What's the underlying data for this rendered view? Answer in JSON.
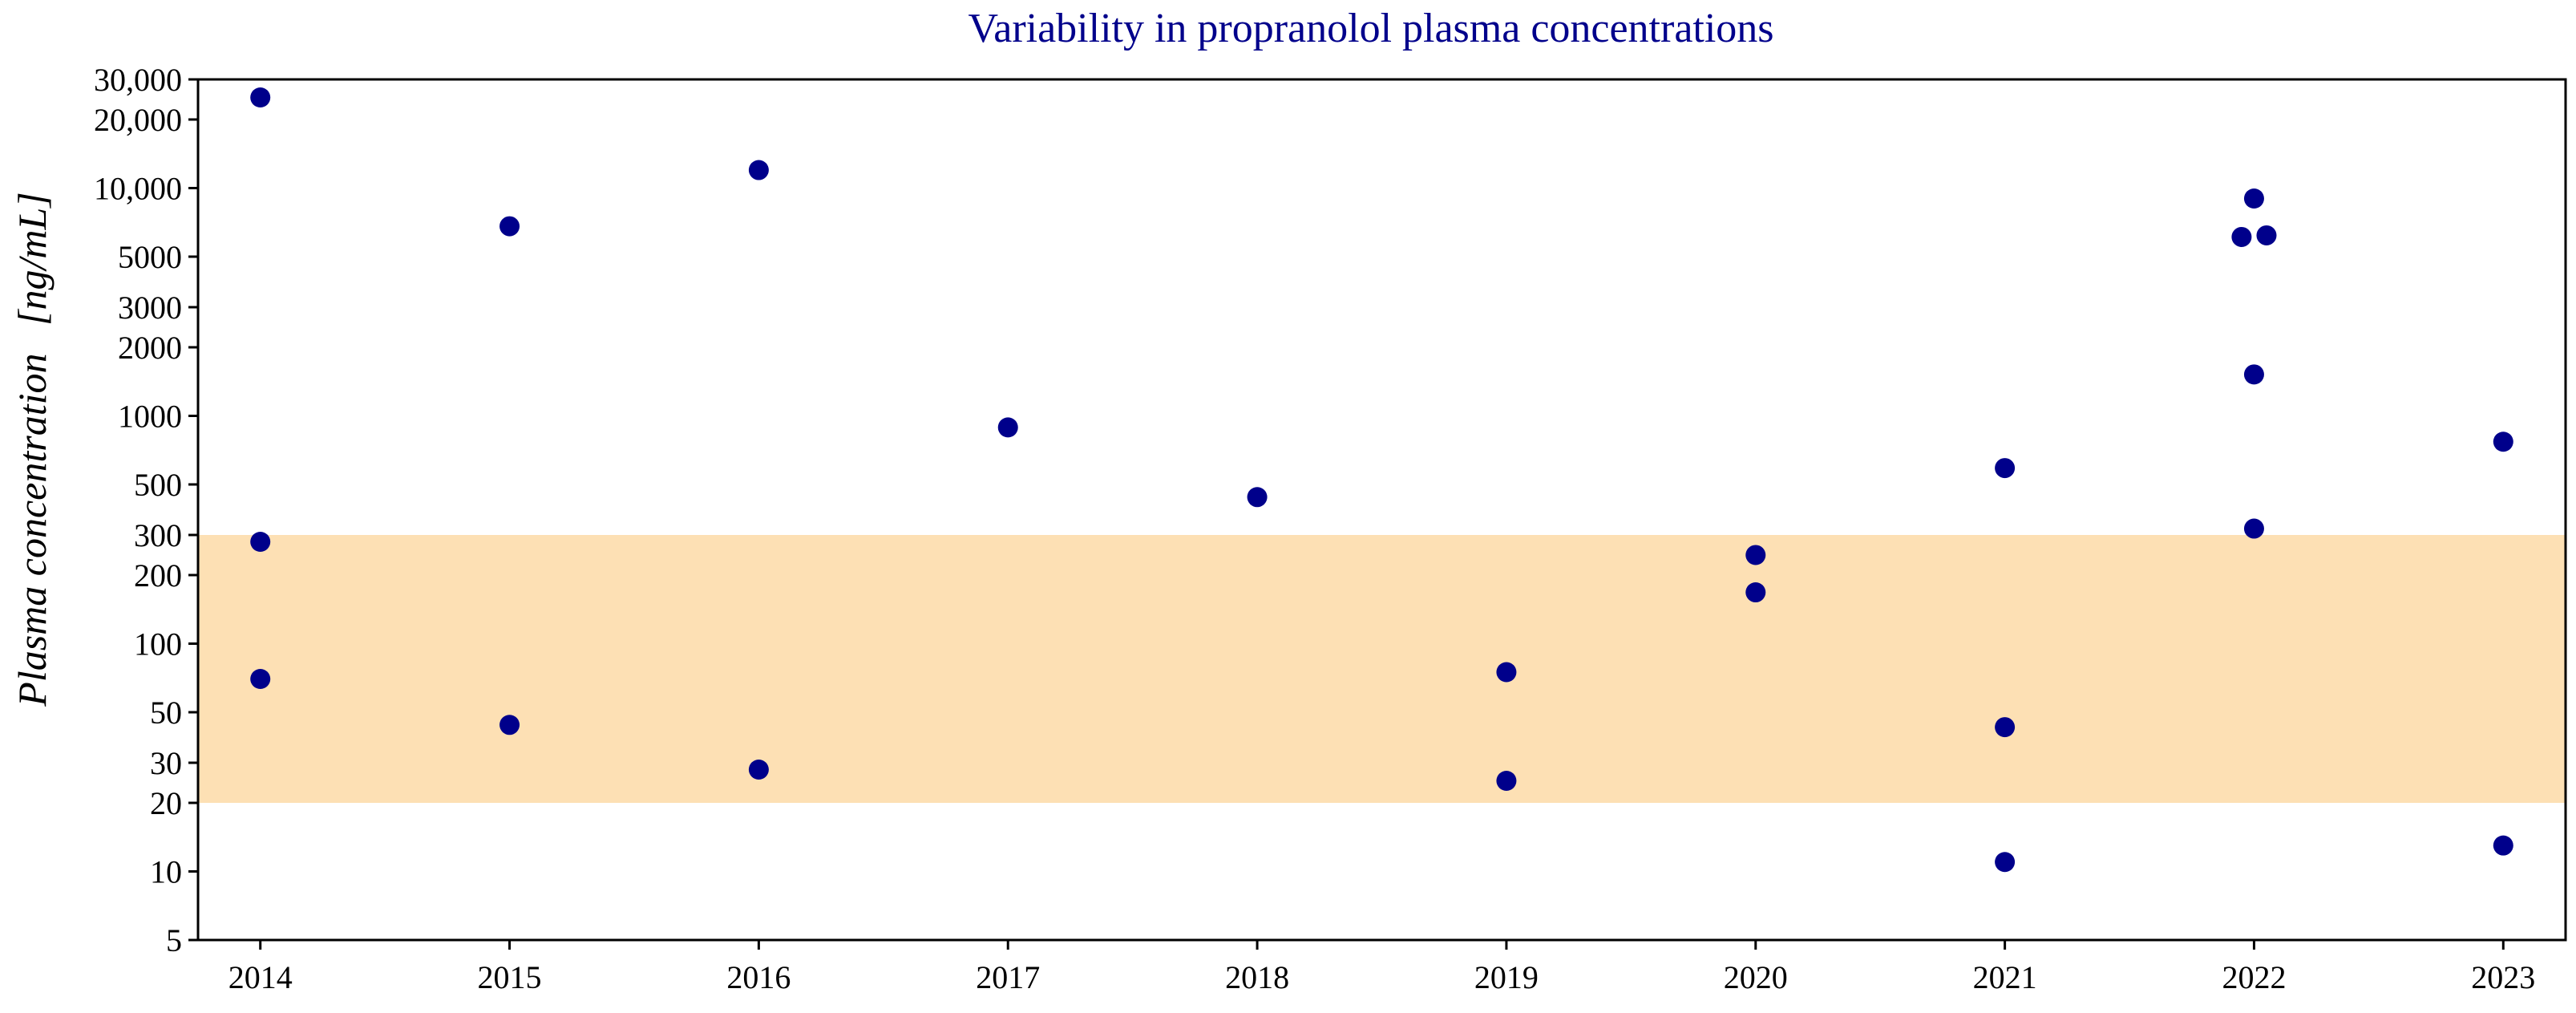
{
  "colors": {
    "point": "#00008B",
    "title": "#00008B",
    "band": "#FDE0B4",
    "axis": "#000000"
  },
  "chart_data": {
    "type": "scatter",
    "title": "Variability in propranolol plasma concentrations",
    "xlabel": "",
    "ylabel": "Plasma concentration [ng/mL]",
    "ylabel_main": "Plasma concentration",
    "ylabel_unit": "[ng/mL]",
    "yscale": "log",
    "xlim": [
      2013.75,
      2023.25
    ],
    "ylim": [
      5,
      30000
    ],
    "x_ticks": [
      2014,
      2015,
      2016,
      2017,
      2018,
      2019,
      2020,
      2021,
      2022,
      2023
    ],
    "x_tick_labels": [
      "2014",
      "2015",
      "2016",
      "2017",
      "2018",
      "2019",
      "2020",
      "2021",
      "2022",
      "2023"
    ],
    "y_ticks": [
      5,
      10,
      20,
      30,
      50,
      100,
      200,
      300,
      500,
      1000,
      2000,
      3000,
      5000,
      10000,
      20000,
      30000
    ],
    "y_tick_labels": [
      "5",
      "10",
      "20",
      "30",
      "50",
      "100",
      "200",
      "300",
      "500",
      "1000",
      "2000",
      "3000",
      "5000",
      "10,000",
      "20,000",
      "30,000"
    ],
    "reference_band": {
      "lower": 20,
      "upper": 300
    },
    "grid": false,
    "series": [
      {
        "name": "Plasma concentration",
        "points": [
          {
            "x": 2014,
            "y": 25000
          },
          {
            "x": 2014,
            "y": 280
          },
          {
            "x": 2014,
            "y": 70
          },
          {
            "x": 2015,
            "y": 6800
          },
          {
            "x": 2015,
            "y": 44
          },
          {
            "x": 2016,
            "y": 12000
          },
          {
            "x": 2016,
            "y": 28
          },
          {
            "x": 2017,
            "y": 890
          },
          {
            "x": 2018,
            "y": 440
          },
          {
            "x": 2019,
            "y": 75
          },
          {
            "x": 2019,
            "y": 25
          },
          {
            "x": 2020,
            "y": 245
          },
          {
            "x": 2020,
            "y": 168
          },
          {
            "x": 2021,
            "y": 590
          },
          {
            "x": 2021,
            "y": 43
          },
          {
            "x": 2021,
            "y": 11
          },
          {
            "x": 2021.95,
            "y": 6100
          },
          {
            "x": 2022,
            "y": 9000
          },
          {
            "x": 2022.05,
            "y": 6200
          },
          {
            "x": 2022,
            "y": 1520
          },
          {
            "x": 2022,
            "y": 320
          },
          {
            "x": 2023,
            "y": 770
          },
          {
            "x": 2023,
            "y": 13
          }
        ]
      }
    ]
  }
}
